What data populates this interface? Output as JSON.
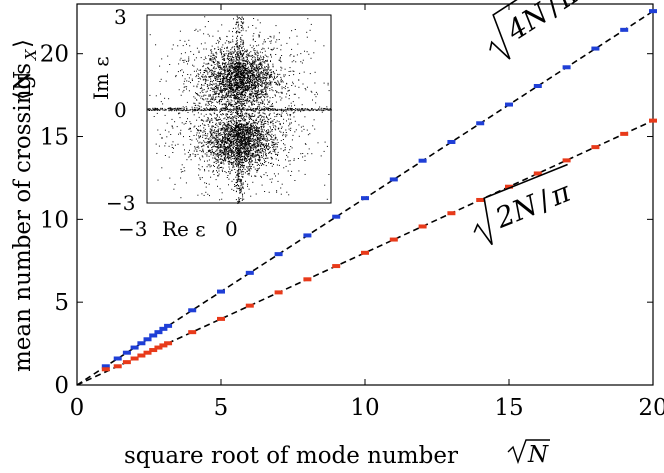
{
  "chart_data": {
    "type": "scatter",
    "xlabel_text": "square root of mode number",
    "xlabel_math": "√N",
    "ylabel_text": "mean number of crossings",
    "ylabel_math": "⟨N",
    "ylabel_sub": "X",
    "ylabel_close": "⟩",
    "xlim": [
      0,
      20
    ],
    "ylim": [
      0,
      23
    ],
    "xticks": [
      "0",
      "5",
      "10",
      "15",
      "20"
    ],
    "yticks": [
      "0",
      "5",
      "10",
      "15",
      "20"
    ],
    "grid": false,
    "series": [
      {
        "color": "#1f3fd6",
        "x": [
          1,
          1.414,
          1.732,
          2,
          2.236,
          2.449,
          2.646,
          2.828,
          3,
          3.162,
          4,
          5,
          6,
          7,
          8,
          9,
          10,
          11,
          12,
          13,
          14,
          15,
          16,
          17,
          18,
          19,
          20
        ],
        "y": [
          1.13,
          1.6,
          1.95,
          2.26,
          2.52,
          2.76,
          2.99,
          3.19,
          3.39,
          3.57,
          4.51,
          5.64,
          6.77,
          7.9,
          9.03,
          10.16,
          11.28,
          12.41,
          13.54,
          14.67,
          15.8,
          16.93,
          18.05,
          19.18,
          20.31,
          21.44,
          22.57
        ]
      },
      {
        "color": "#e83a1a",
        "x": [
          1,
          1.414,
          1.732,
          2,
          2.236,
          2.449,
          2.646,
          2.828,
          3,
          3.162,
          4,
          5,
          6,
          7,
          8,
          9,
          10,
          11,
          12,
          13,
          14,
          15,
          16,
          17,
          18,
          19,
          20
        ],
        "y": [
          0.95,
          1.13,
          1.38,
          1.6,
          1.78,
          1.95,
          2.11,
          2.26,
          2.39,
          2.52,
          3.19,
          3.99,
          4.79,
          5.59,
          6.38,
          7.18,
          7.98,
          8.78,
          9.57,
          10.37,
          11.17,
          11.97,
          12.77,
          13.56,
          14.36,
          15.16,
          15.96
        ]
      }
    ],
    "fit_lines": [
      {
        "label_coef": "4N",
        "label_den": "π",
        "coef": 1.128
      },
      {
        "label_coef": "2N",
        "label_den": "π",
        "coef": 0.798
      }
    ],
    "inset": {
      "type": "scatter",
      "xlabel": "Re ε",
      "ylabel": "Im ε",
      "xticks": [
        "−3",
        "0"
      ],
      "yticks": [
        "3",
        "0",
        "−3"
      ],
      "xlim": [
        -3,
        3
      ],
      "ylim": [
        -3,
        3
      ],
      "point_color": "#000000",
      "clusters": [
        {
          "cx": 0,
          "cy": 1,
          "n": 2600
        },
        {
          "cx": 0,
          "cy": -1,
          "n": 2600
        }
      ]
    }
  }
}
